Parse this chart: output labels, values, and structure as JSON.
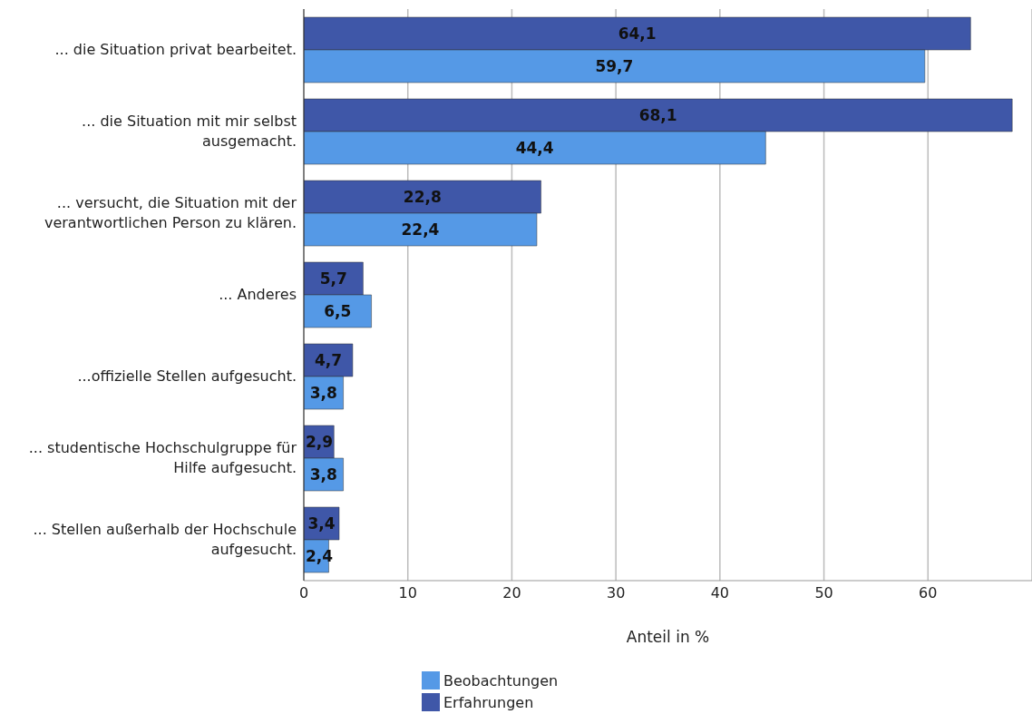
{
  "chart_data": {
    "type": "bar",
    "orientation": "horizontal",
    "xlabel": "Anteil in %",
    "categories": [
      "... die Situation privat bearbeitet.",
      "... die Situation mit mir selbst ausgemacht.",
      "... versucht, die Situation mit der verantwortlichen Person zu klären.",
      "... Anderes",
      "...offizielle Stellen aufgesucht.",
      "... studentische Hochschulgruppe für Hilfe aufgesucht.",
      "... Stellen außerhalb der Hochschule aufgesucht."
    ],
    "series": [
      {
        "name": "Beobachtungen",
        "color": "#5599e6",
        "values": [
          59.7,
          44.4,
          22.4,
          6.5,
          3.8,
          3.8,
          2.4
        ],
        "value_labels": [
          "59,7",
          "44,4",
          "22,4",
          "6,5",
          "3,8",
          "3,8",
          "2,4"
        ]
      },
      {
        "name": "Erfahrungen",
        "color": "#3f57a8",
        "values": [
          64.1,
          68.1,
          22.8,
          5.7,
          4.7,
          2.9,
          3.4
        ],
        "value_labels": [
          "64,1",
          "68,1",
          "22,8",
          "5,7",
          "4,7",
          "2,9",
          "3,4"
        ]
      }
    ],
    "xlim": [
      0,
      70
    ],
    "xticks": [
      0,
      10,
      20,
      30,
      40,
      50,
      60
    ],
    "grid": "x",
    "legend": "bottom"
  }
}
